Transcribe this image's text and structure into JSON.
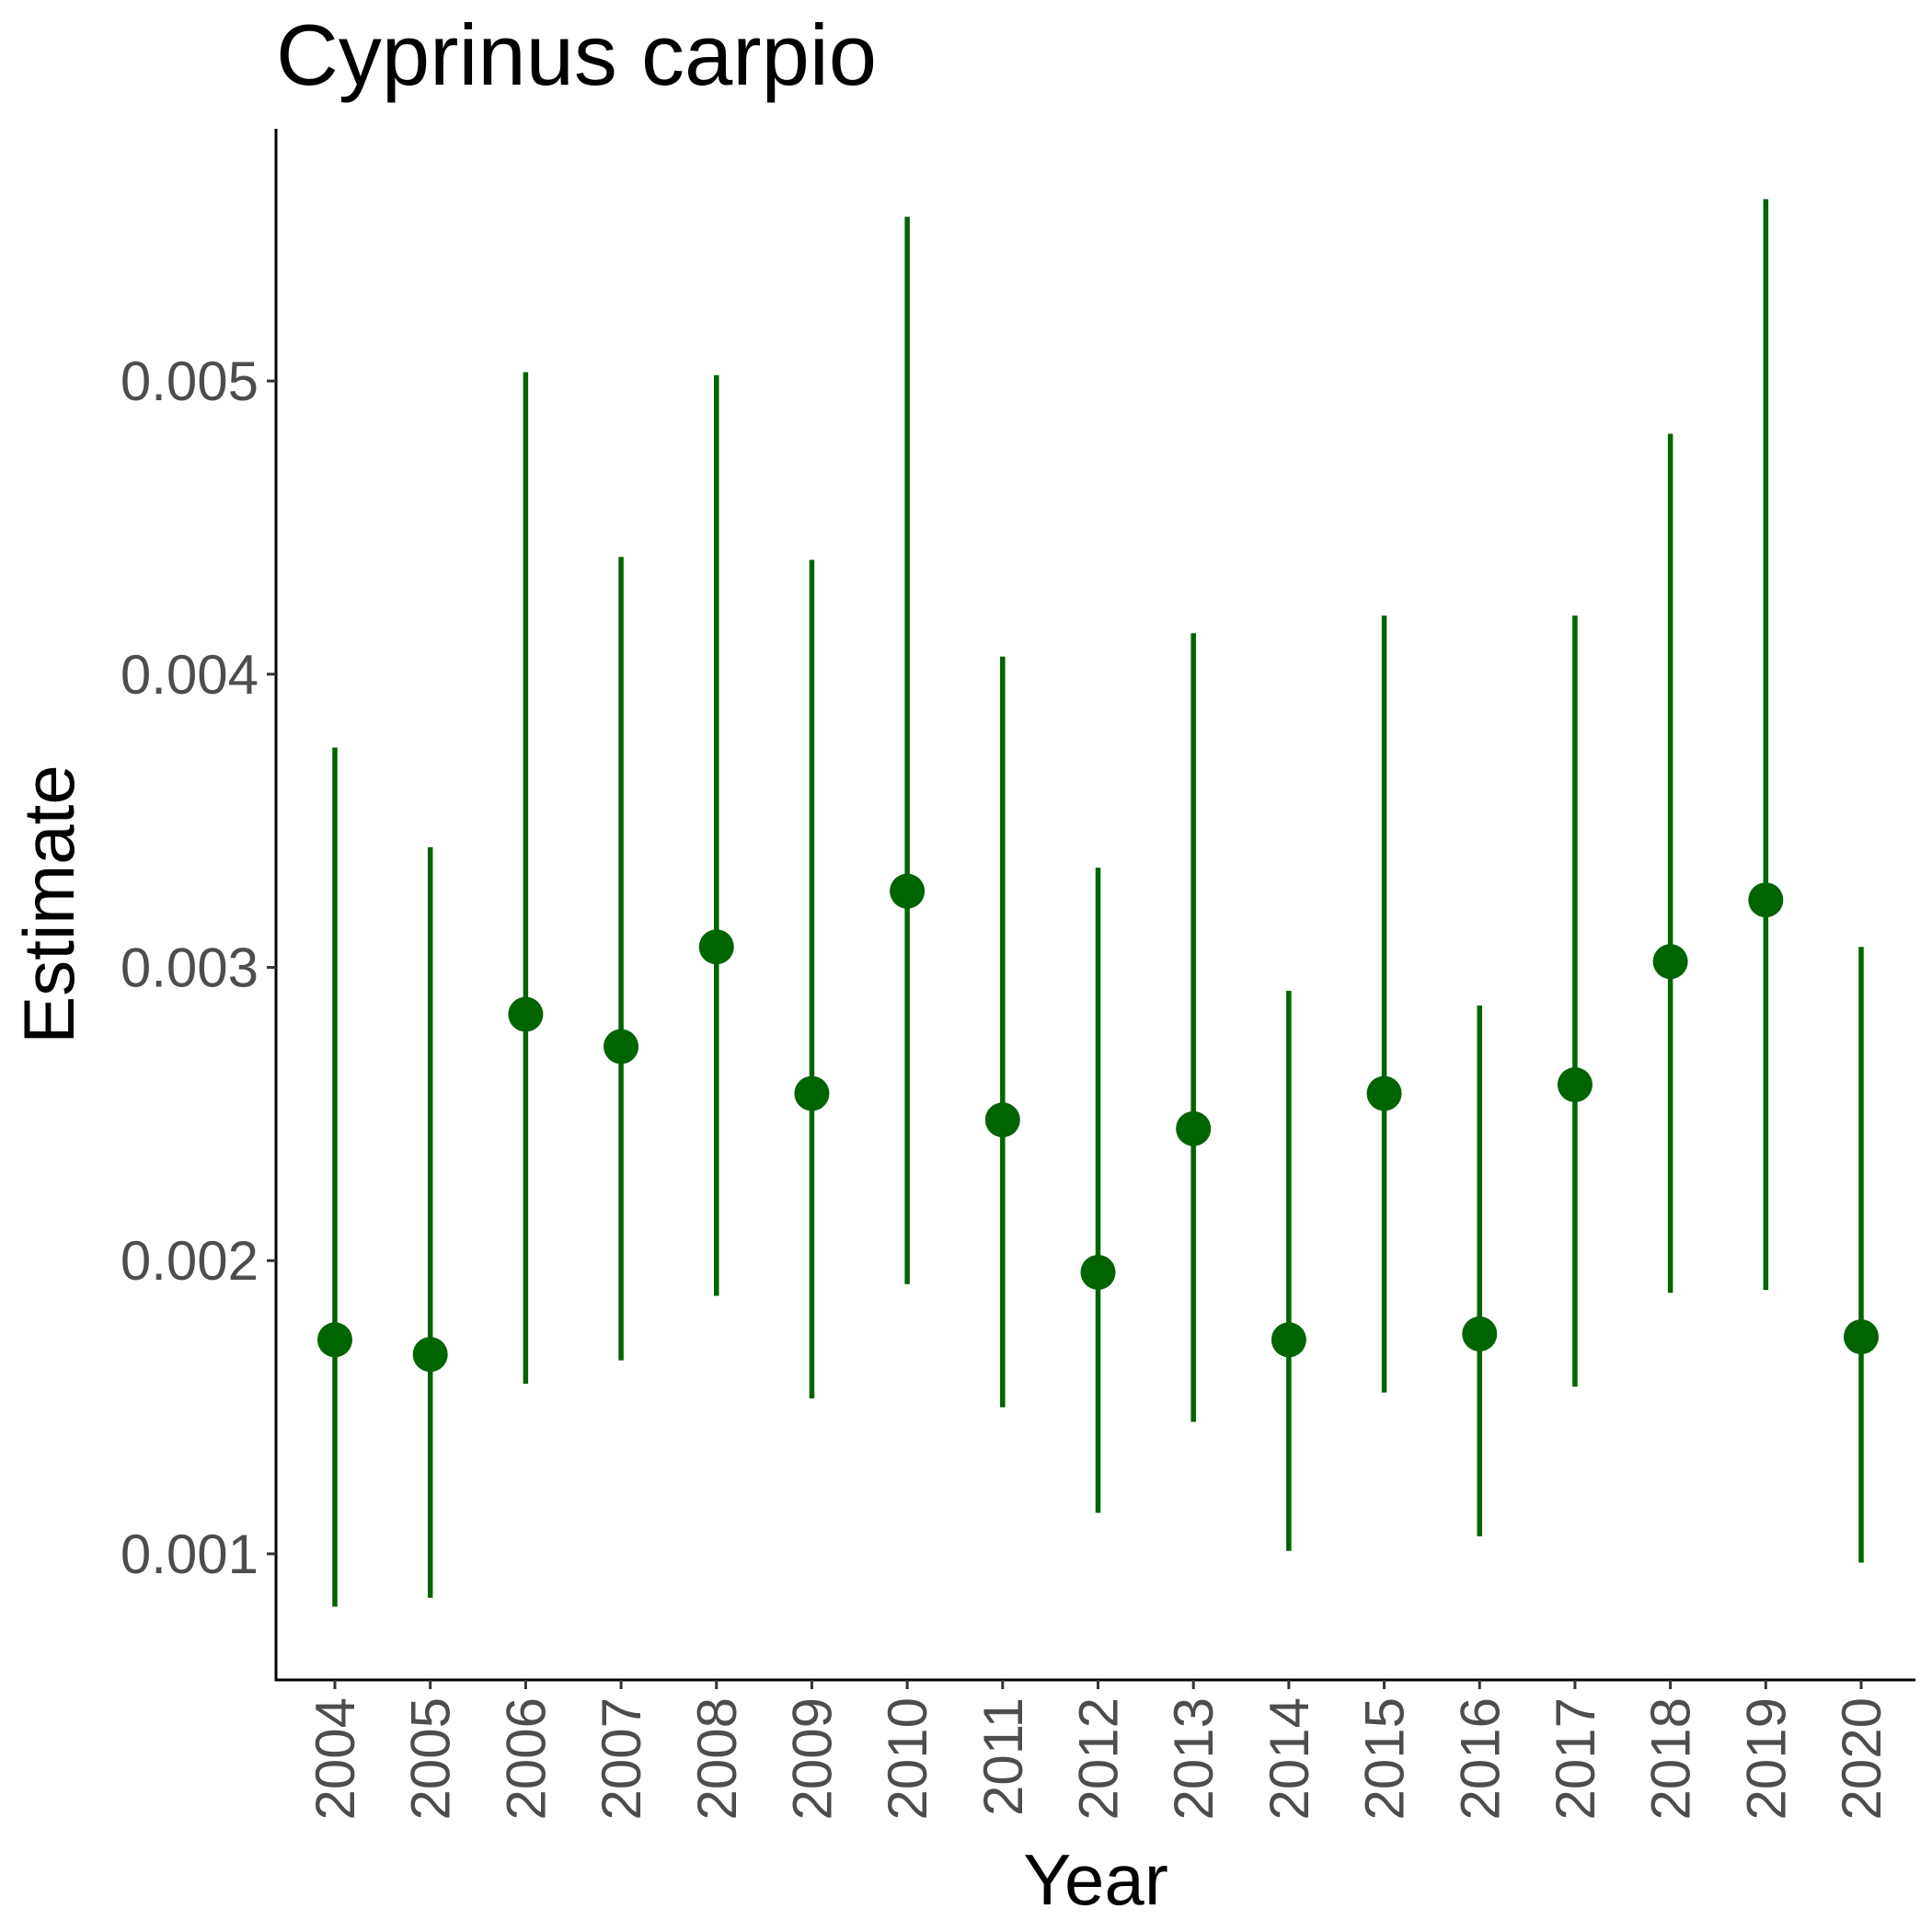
{
  "chart_data": {
    "type": "scatter",
    "title": "Cyprinus carpio",
    "xlabel": "Year",
    "ylabel": "Estimate",
    "categories": [
      "2004",
      "2005",
      "2006",
      "2007",
      "2008",
      "2009",
      "2010",
      "2011",
      "2012",
      "2013",
      "2014",
      "2015",
      "2016",
      "2017",
      "2018",
      "2019",
      "2020"
    ],
    "yticks": [
      "0.001",
      "0.002",
      "0.003",
      "0.004",
      "0.005"
    ],
    "ylim": [
      0.00057,
      0.00586
    ],
    "grid": false,
    "legend": "none",
    "color": "#006400",
    "series": [
      {
        "values": [
          0.00173,
          0.00168,
          0.00284,
          0.00273,
          0.00307,
          0.00257,
          0.00326,
          0.00248,
          0.00196,
          0.00245,
          0.00173,
          0.00257,
          0.00175,
          0.0026,
          0.00302,
          0.00323,
          0.00174
        ],
        "lower": [
          0.00082,
          0.00085,
          0.00158,
          0.00166,
          0.00188,
          0.00153,
          0.00192,
          0.0015,
          0.00114,
          0.00145,
          0.00101,
          0.00155,
          0.00106,
          0.00157,
          0.00189,
          0.0019,
          0.00097
        ],
        "upper": [
          0.00375,
          0.00341,
          0.00503,
          0.0044,
          0.00502,
          0.00439,
          0.00556,
          0.00406,
          0.00334,
          0.00414,
          0.00292,
          0.0042,
          0.00287,
          0.0042,
          0.00482,
          0.00562,
          0.00307
        ]
      }
    ]
  }
}
